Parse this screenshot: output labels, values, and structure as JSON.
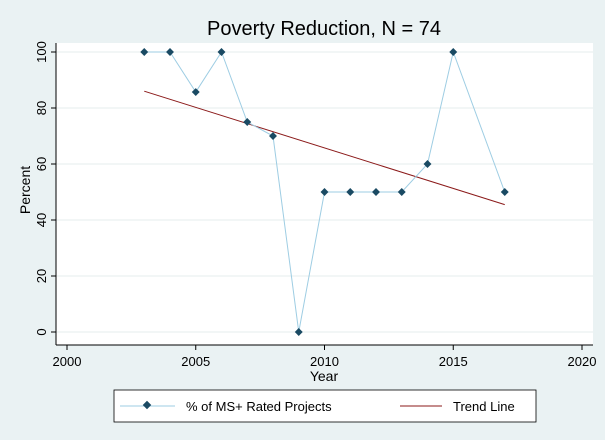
{
  "chart_data": {
    "type": "line",
    "title": "Poverty Reduction, N = 74",
    "xlabel": "Year",
    "ylabel": "Percent",
    "xlim": [
      2000,
      2020
    ],
    "ylim": [
      0,
      100
    ],
    "x_ticks": [
      2000,
      2005,
      2010,
      2015,
      2020
    ],
    "y_ticks": [
      0,
      20,
      40,
      60,
      80,
      100
    ],
    "grid": true,
    "legend_position": "bottom",
    "series": [
      {
        "name": "% of MS+ Rated Projects",
        "color": "#9ecde3",
        "marker_color": "#1a4a63",
        "x": [
          2003,
          2004,
          2005,
          2006,
          2007,
          2008,
          2009,
          2010,
          2011,
          2012,
          2013,
          2014,
          2015,
          2017
        ],
        "y": [
          100,
          100,
          85.7,
          100,
          75,
          70,
          0,
          50,
          50,
          50,
          50,
          60,
          100,
          50
        ]
      },
      {
        "name": "Trend Line",
        "color": "#8b1a1a",
        "x": [
          2003,
          2017
        ],
        "y": [
          86,
          45.5
        ]
      }
    ]
  }
}
